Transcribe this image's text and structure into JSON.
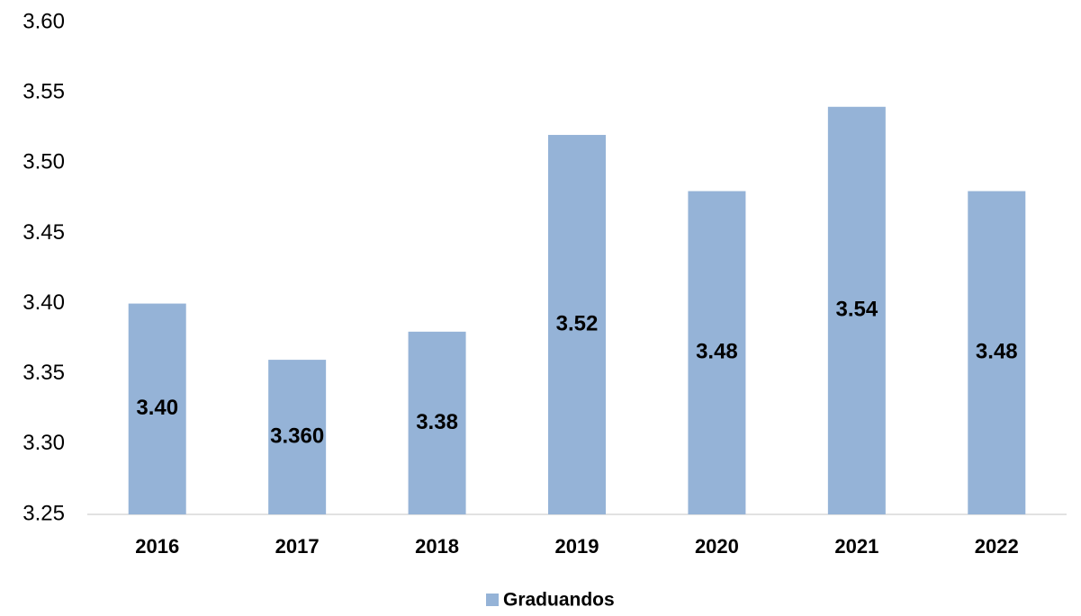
{
  "chart_data": {
    "type": "bar",
    "categories": [
      "2016",
      "2017",
      "2018",
      "2019",
      "2020",
      "2021",
      "2022"
    ],
    "series": [
      {
        "name": "Graduandos",
        "color": "#95b3d7",
        "values": [
          3.4,
          3.36,
          3.38,
          3.52,
          3.48,
          3.54,
          3.48
        ],
        "value_labels": [
          "3.40",
          "3.360",
          "3.38",
          "3.52",
          "3.48",
          "3.54",
          "3.48"
        ]
      }
    ],
    "ylim": [
      3.25,
      3.6
    ],
    "yticks": [
      3.25,
      {
        "value": 3.3,
        "label": "3.30"
      },
      3.35,
      {
        "value": 3.4,
        "label": "3.40"
      },
      3.45,
      {
        "value": 3.5,
        "label": "3.50"
      },
      3.55,
      {
        "value": 3.6,
        "label": "3.60"
      }
    ],
    "grid": false
  }
}
